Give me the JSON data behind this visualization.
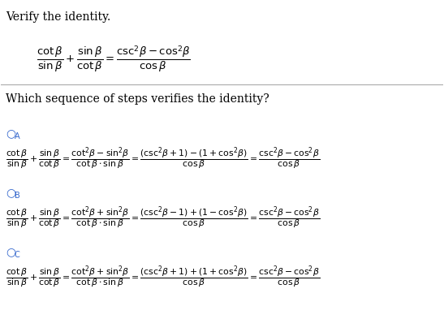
{
  "bg_color": "#ffffff",
  "text_color": "#000000",
  "blue_color": "#3366cc",
  "title": "Verify the identity.",
  "question": "Which sequence of steps verifies the identity?",
  "main_identity": "$\\dfrac{\\cot\\beta}{\\sin\\beta} + \\dfrac{\\sin\\beta}{\\cot\\beta} = \\dfrac{\\csc^{2}\\!\\beta - \\cos^{2}\\!\\beta}{\\cos\\beta}$",
  "option_A_label": "$O_A$",
  "option_B_label": "$O_B$",
  "option_C_label": "$O_C$",
  "line_A": "$\\dfrac{\\cot\\beta}{\\sin\\beta} + \\dfrac{\\sin\\beta}{\\cot\\beta} = \\dfrac{\\cot^{2}\\!\\beta - \\sin^{2}\\!\\beta}{\\cot\\beta\\cdot\\sin\\beta} = \\dfrac{(\\csc^{2}\\!\\beta+1)-(1+\\cos^{2}\\!\\beta)}{\\cos\\beta} = \\dfrac{\\csc^{2}\\!\\beta - \\cos^{2}\\!\\beta}{\\cos\\beta}$",
  "line_B": "$\\dfrac{\\cot\\beta}{\\sin\\beta} + \\dfrac{\\sin\\beta}{\\cot\\beta} = \\dfrac{\\cot^{2}\\!\\beta + \\sin^{2}\\!\\beta}{\\cot\\beta\\cdot\\sin\\beta} = \\dfrac{(\\csc^{2}\\!\\beta-1)+(1-\\cos^{2}\\!\\beta)}{\\cos\\beta} = \\dfrac{\\csc^{2}\\!\\beta - \\cos^{2}\\!\\beta}{\\cos\\beta}$",
  "line_C": "$\\dfrac{\\cot\\beta}{\\sin\\beta} + \\dfrac{\\sin\\beta}{\\cot\\beta} = \\dfrac{\\cot^{2}\\!\\beta + \\sin^{2}\\!\\beta}{\\cot\\beta\\cdot\\sin\\beta} = \\dfrac{(\\csc^{2}\\!\\beta+1)+(1+\\cos^{2}\\!\\beta)}{\\cos\\beta} = \\dfrac{\\csc^{2}\\!\\beta - \\cos^{2}\\!\\beta}{\\cos\\beta}$"
}
